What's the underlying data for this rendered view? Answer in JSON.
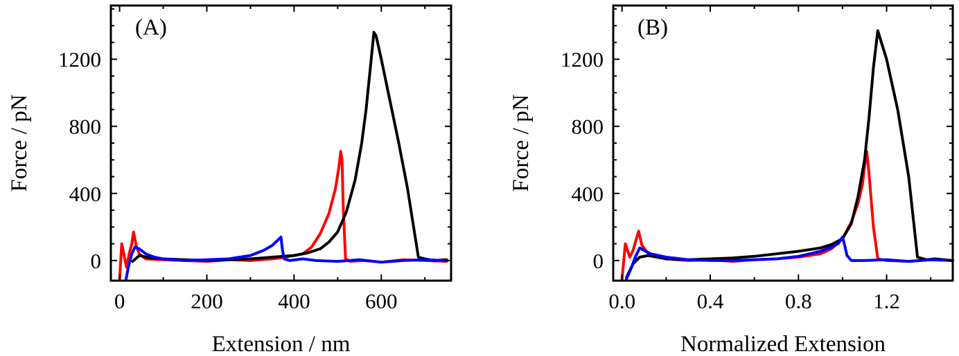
{
  "chart_data": [
    {
      "type": "line",
      "panel_label": "(A)",
      "xlabel": "Extension / nm",
      "ylabel": "Force / pN",
      "xlim": [
        -20,
        760
      ],
      "ylim": [
        -120,
        1520
      ],
      "xticks": [
        0,
        200,
        400,
        600
      ],
      "xtick_labels": [
        "0",
        "200",
        "400",
        "600"
      ],
      "yticks": [
        0,
        400,
        800,
        1200
      ],
      "ytick_labels": [
        "0",
        "400",
        "800",
        "1200"
      ],
      "grid": false,
      "series": [
        {
          "name": "red",
          "color": "#ff0000",
          "x": [
            0,
            5,
            12,
            16,
            22,
            28,
            32,
            38,
            45,
            60,
            100,
            150,
            200,
            250,
            300,
            350,
            380,
            420,
            440,
            460,
            480,
            495,
            503,
            507,
            510,
            513,
            518,
            528,
            560,
            600,
            650,
            700,
            750
          ],
          "y": [
            -110,
            100,
            10,
            -40,
            40,
            100,
            170,
            90,
            40,
            10,
            5,
            0,
            -5,
            5,
            0,
            10,
            20,
            40,
            80,
            160,
            280,
            430,
            560,
            650,
            600,
            300,
            10,
            -5,
            0,
            -10,
            5,
            0,
            -5
          ]
        },
        {
          "name": "black",
          "color": "#000000",
          "x": [
            30,
            45,
            70,
            100,
            150,
            200,
            250,
            300,
            350,
            400,
            430,
            460,
            480,
            500,
            520,
            540,
            555,
            565,
            575,
            583,
            588,
            600,
            620,
            640,
            660,
            685,
            700,
            720,
            750
          ],
          "y": [
            -5,
            30,
            15,
            10,
            5,
            0,
            5,
            10,
            20,
            30,
            45,
            70,
            110,
            170,
            290,
            480,
            700,
            900,
            1150,
            1360,
            1340,
            1200,
            950,
            700,
            430,
            20,
            10,
            0,
            5
          ]
        },
        {
          "name": "blue",
          "color": "#0000ff",
          "x": [
            15,
            20,
            28,
            35,
            45,
            60,
            80,
            100,
            150,
            200,
            250,
            300,
            330,
            350,
            362,
            370,
            373,
            377,
            390,
            420,
            450,
            500,
            550,
            600,
            650,
            700,
            750
          ],
          "y": [
            -110,
            -40,
            40,
            80,
            70,
            40,
            20,
            10,
            0,
            5,
            10,
            30,
            60,
            90,
            120,
            140,
            70,
            10,
            0,
            10,
            0,
            -5,
            5,
            -10,
            0,
            5,
            0
          ]
        }
      ]
    },
    {
      "type": "line",
      "panel_label": "(B)",
      "xlabel": "Normalized Extension",
      "ylabel": "Force / pN",
      "xlim": [
        -0.04,
        1.5
      ],
      "ylim": [
        -120,
        1520
      ],
      "xticks": [
        0.0,
        0.4,
        0.8,
        1.2
      ],
      "xtick_labels": [
        "0.0",
        "0.4",
        "0.8",
        "1.2"
      ],
      "yticks": [
        0,
        400,
        800,
        1200
      ],
      "ytick_labels": [
        "0",
        "400",
        "800",
        "1200"
      ],
      "grid": false,
      "series": [
        {
          "name": "red",
          "color": "#ff0000",
          "x": [
            0.0,
            0.015,
            0.035,
            0.05,
            0.065,
            0.075,
            0.09,
            0.12,
            0.2,
            0.3,
            0.4,
            0.5,
            0.6,
            0.7,
            0.8,
            0.9,
            0.95,
            1.0,
            1.04,
            1.07,
            1.09,
            1.1,
            1.11,
            1.12,
            1.14,
            1.16,
            1.2,
            1.3,
            1.4,
            1.5
          ],
          "y": [
            -110,
            100,
            20,
            60,
            130,
            175,
            90,
            40,
            10,
            0,
            5,
            -5,
            5,
            10,
            20,
            40,
            70,
            130,
            230,
            340,
            450,
            560,
            650,
            520,
            200,
            10,
            0,
            -5,
            5,
            0
          ]
        },
        {
          "name": "black",
          "color": "#000000",
          "x": [
            0.02,
            0.05,
            0.08,
            0.12,
            0.2,
            0.3,
            0.4,
            0.5,
            0.6,
            0.7,
            0.8,
            0.9,
            0.95,
            1.0,
            1.04,
            1.07,
            1.1,
            1.12,
            1.14,
            1.16,
            1.2,
            1.25,
            1.3,
            1.34,
            1.38,
            1.42,
            1.5
          ],
          "y": [
            -100,
            -20,
            20,
            30,
            10,
            5,
            10,
            15,
            25,
            40,
            55,
            75,
            95,
            130,
            220,
            380,
            600,
            850,
            1150,
            1370,
            1200,
            900,
            500,
            20,
            5,
            10,
            0
          ]
        },
        {
          "name": "blue",
          "color": "#0000ff",
          "x": [
            0.02,
            0.04,
            0.06,
            0.08,
            0.1,
            0.13,
            0.2,
            0.3,
            0.4,
            0.5,
            0.6,
            0.7,
            0.8,
            0.85,
            0.9,
            0.95,
            0.98,
            1.0,
            1.01,
            1.02,
            1.04,
            1.1,
            1.2,
            1.3,
            1.4,
            1.5
          ],
          "y": [
            -110,
            -50,
            20,
            75,
            60,
            40,
            20,
            5,
            0,
            0,
            5,
            10,
            25,
            40,
            55,
            80,
            100,
            140,
            90,
            30,
            0,
            0,
            5,
            -5,
            5,
            0
          ]
        }
      ]
    }
  ]
}
